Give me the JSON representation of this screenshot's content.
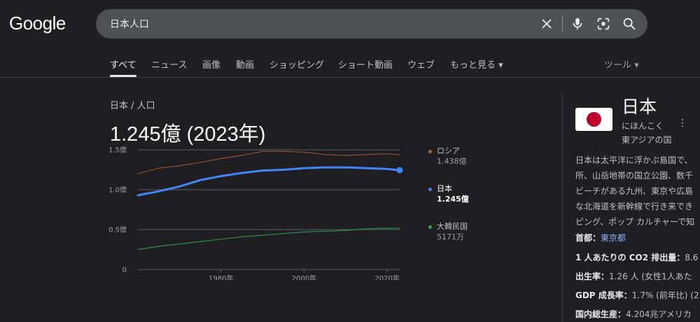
{
  "logo": "Google",
  "search": {
    "query": "日本人口"
  },
  "tabs": [
    {
      "label": "すべて",
      "active": true
    },
    {
      "label": "ニュース"
    },
    {
      "label": "画像"
    },
    {
      "label": "動画"
    },
    {
      "label": "ショッピング"
    },
    {
      "label": "ショート動画"
    },
    {
      "label": "ウェブ"
    },
    {
      "label": "もっと見る ▾"
    }
  ],
  "tools": "ツール ▾",
  "breadcrumb": "日本 / 人口",
  "headline": "1.245億 (2023年)",
  "legend": [
    {
      "name": "ロシア",
      "value": "1.438億",
      "color": "#b35c3a",
      "bold": false
    },
    {
      "name": "日本",
      "value": "1.245億",
      "color": "#4285f4",
      "bold": true
    },
    {
      "name": "大韓民国",
      "value": "5171万",
      "color": "#34a853",
      "bold": false
    }
  ],
  "chart_data": {
    "type": "line",
    "x_ticks": [
      "1980年",
      "2000年",
      "2020年"
    ],
    "y_ticks": [
      "0",
      "0.5億",
      "1.0億",
      "1.5億"
    ],
    "xlim": [
      1960,
      2023
    ],
    "ylim": [
      0,
      1.5
    ],
    "y_unit": "億",
    "series": [
      {
        "name": "ロシア",
        "color": "#b35c3a",
        "points": [
          [
            1960,
            1.2
          ],
          [
            1965,
            1.27
          ],
          [
            1970,
            1.3
          ],
          [
            1975,
            1.34
          ],
          [
            1980,
            1.39
          ],
          [
            1985,
            1.43
          ],
          [
            1990,
            1.48
          ],
          [
            1995,
            1.48
          ],
          [
            2000,
            1.47
          ],
          [
            2005,
            1.44
          ],
          [
            2010,
            1.43
          ],
          [
            2015,
            1.44
          ],
          [
            2020,
            1.45
          ],
          [
            2023,
            1.438
          ]
        ]
      },
      {
        "name": "日本",
        "color": "#4285f4",
        "points": [
          [
            1960,
            0.93
          ],
          [
            1965,
            0.98
          ],
          [
            1970,
            1.04
          ],
          [
            1975,
            1.12
          ],
          [
            1980,
            1.17
          ],
          [
            1985,
            1.21
          ],
          [
            1990,
            1.24
          ],
          [
            1995,
            1.25
          ],
          [
            2000,
            1.27
          ],
          [
            2005,
            1.28
          ],
          [
            2010,
            1.28
          ],
          [
            2015,
            1.27
          ],
          [
            2020,
            1.26
          ],
          [
            2023,
            1.245
          ]
        ]
      },
      {
        "name": "大韓民国",
        "color": "#34a853",
        "points": [
          [
            1960,
            0.25
          ],
          [
            1965,
            0.29
          ],
          [
            1970,
            0.32
          ],
          [
            1975,
            0.35
          ],
          [
            1980,
            0.38
          ],
          [
            1985,
            0.41
          ],
          [
            1990,
            0.43
          ],
          [
            1995,
            0.45
          ],
          [
            2000,
            0.47
          ],
          [
            2005,
            0.48
          ],
          [
            2010,
            0.49
          ],
          [
            2015,
            0.51
          ],
          [
            2020,
            0.518
          ],
          [
            2023,
            0.5171
          ]
        ]
      }
    ]
  },
  "knowledge_panel": {
    "title": "日本",
    "reading": "にほんこく",
    "subtitle": "東アジアの国",
    "description": [
      "日本は太平洋に浮かぶ島国で、",
      "所、山岳地帯の国立公園、数千",
      "ビーチがある九州、東京や広島",
      "な北海道を新幹線で行き来でき",
      "ピング、ポップ カルチャーで知"
    ],
    "facts": [
      {
        "label": "首都：",
        "value": "東京都",
        "link": true
      },
      {
        "label": "1 人あたりの CO2 排出量：",
        "value": "8.6"
      },
      {
        "label": "出生率：",
        "value": "1.26 人 (女性1人あた"
      },
      {
        "label": "GDP 成長率：",
        "value": "1.7% (前年比) (2"
      },
      {
        "label": "国内総生産：",
        "value": "4.204兆アメリカ"
      }
    ]
  }
}
